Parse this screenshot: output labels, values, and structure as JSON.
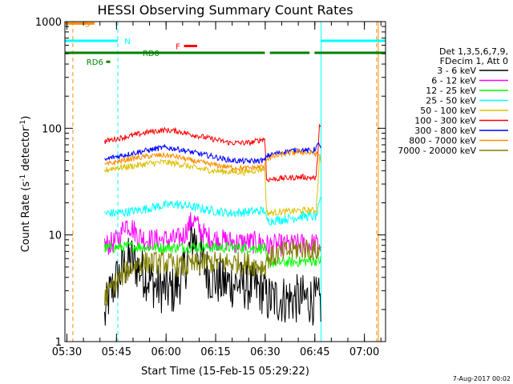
{
  "chart_data": {
    "type": "line",
    "title": "HESSI Observing Summary Count Rates",
    "xlabel": "Start Time (15-Feb-15 05:29:22)",
    "ylabel_main": "Count Rate (s",
    "ylabel_sup1": "-1",
    "ylabel_mid": " detector",
    "ylabel_sup2": "-1",
    "ylabel_end": ")",
    "x_unit": "minutes after 05:29:22",
    "xlim": [
      0,
      97
    ],
    "ylim": [
      1,
      1000
    ],
    "yscale": "log",
    "x_ticks": [
      {
        "label": "05:30",
        "value": 0.6
      },
      {
        "label": "05:45",
        "value": 15.6
      },
      {
        "label": "06:00",
        "value": 30.6
      },
      {
        "label": "06:15",
        "value": 45.6
      },
      {
        "label": "06:30",
        "value": 60.6
      },
      {
        "label": "06:45",
        "value": 75.6
      },
      {
        "label": "07:00",
        "value": 90.6
      }
    ],
    "y_ticks": [
      {
        "label": "1",
        "value": 1
      },
      {
        "label": "10",
        "value": 10
      },
      {
        "label": "100",
        "value": 100
      },
      {
        "label": "1000",
        "value": 1000
      }
    ],
    "legend_header": [
      "Det 1,3,5,6,7,9,",
      "FDecim 1, Att 0"
    ],
    "data_gaps": [
      [
        0,
        12
      ],
      [
        77.5,
        97
      ]
    ],
    "series": [
      {
        "name": "3 - 6 keV",
        "color": "#000000",
        "noise": 0.55,
        "points": [
          [
            12,
            1.6
          ],
          [
            13,
            2.5
          ],
          [
            15,
            3.5
          ],
          [
            18,
            5
          ],
          [
            20,
            6
          ],
          [
            22,
            5
          ],
          [
            25,
            4
          ],
          [
            28,
            3.2
          ],
          [
            33,
            3
          ],
          [
            36,
            4.5
          ],
          [
            38,
            8
          ],
          [
            39,
            10
          ],
          [
            41,
            6
          ],
          [
            44,
            4
          ],
          [
            48,
            3.5
          ],
          [
            52,
            3.5
          ],
          [
            56,
            3.3
          ],
          [
            60.5,
            3
          ],
          [
            61,
            2.5
          ],
          [
            66,
            2.5
          ],
          [
            70,
            2.5
          ],
          [
            74,
            2.5
          ],
          [
            77.5,
            2.3
          ]
        ]
      },
      {
        "name": "6 - 12 keV",
        "color": "#ff00ff",
        "noise": 0.25,
        "points": [
          [
            12,
            8
          ],
          [
            15,
            8.5
          ],
          [
            17,
            10
          ],
          [
            18,
            13
          ],
          [
            20,
            12
          ],
          [
            22,
            10
          ],
          [
            25,
            9
          ],
          [
            28,
            9
          ],
          [
            30,
            9
          ],
          [
            34,
            9
          ],
          [
            36,
            10
          ],
          [
            38,
            13
          ],
          [
            39,
            14
          ],
          [
            41,
            11
          ],
          [
            43,
            9.5
          ],
          [
            47,
            9
          ],
          [
            52,
            8.5
          ],
          [
            56,
            8.5
          ],
          [
            60.5,
            8.5
          ],
          [
            61,
            8
          ],
          [
            68,
            8
          ],
          [
            74,
            8.3
          ],
          [
            77.5,
            8
          ]
        ]
      },
      {
        "name": "12 - 25 keV",
        "color": "#00ff00",
        "noise": 0.12,
        "points": [
          [
            12,
            7.5
          ],
          [
            20,
            7.8
          ],
          [
            30,
            7.6
          ],
          [
            40,
            7.7
          ],
          [
            50,
            7.6
          ],
          [
            60.5,
            7.5
          ],
          [
            61,
            5.5
          ],
          [
            70,
            5.6
          ],
          [
            77.5,
            5.8
          ]
        ]
      },
      {
        "name": "25 - 50 keV",
        "color": "#00ffff",
        "noise": 0.1,
        "points": [
          [
            12,
            16
          ],
          [
            16,
            16
          ],
          [
            22,
            17
          ],
          [
            28,
            18.5
          ],
          [
            33,
            19.5
          ],
          [
            38,
            18.5
          ],
          [
            44,
            17
          ],
          [
            50,
            16
          ],
          [
            56,
            16.5
          ],
          [
            60.5,
            17
          ],
          [
            61,
            13.5
          ],
          [
            66,
            14
          ],
          [
            72,
            15
          ],
          [
            76,
            14.8
          ],
          [
            77.5,
            22
          ]
        ]
      },
      {
        "name": "50 - 100 keV",
        "color": "#ddc000",
        "noise": 0.07,
        "points": [
          [
            12,
            40
          ],
          [
            14,
            42
          ],
          [
            20,
            44
          ],
          [
            26,
            47
          ],
          [
            30,
            48
          ],
          [
            35,
            46
          ],
          [
            40,
            42
          ],
          [
            45,
            40
          ],
          [
            50,
            39
          ],
          [
            55,
            39
          ],
          [
            60.5,
            42
          ],
          [
            61,
            16
          ],
          [
            66,
            16.5
          ],
          [
            72,
            17
          ],
          [
            76,
            17
          ],
          [
            77,
            52
          ],
          [
            77.5,
            50
          ]
        ]
      },
      {
        "name": "100 - 300 keV",
        "color": "#ff0000",
        "noise": 0.06,
        "points": [
          [
            12,
            75
          ],
          [
            14,
            78
          ],
          [
            20,
            85
          ],
          [
            26,
            93
          ],
          [
            30,
            96
          ],
          [
            34,
            94
          ],
          [
            38,
            88
          ],
          [
            44,
            80
          ],
          [
            50,
            73
          ],
          [
            56,
            73
          ],
          [
            60.5,
            80
          ],
          [
            61,
            33
          ],
          [
            66,
            34
          ],
          [
            72,
            35
          ],
          [
            76,
            34
          ],
          [
            77,
            105
          ],
          [
            77.5,
            100
          ]
        ]
      },
      {
        "name": "300 - 800 keV",
        "color": "#0000ff",
        "noise": 0.06,
        "points": [
          [
            12,
            50
          ],
          [
            14,
            53
          ],
          [
            20,
            58
          ],
          [
            26,
            63
          ],
          [
            30,
            66
          ],
          [
            34,
            64
          ],
          [
            38,
            60
          ],
          [
            44,
            55
          ],
          [
            50,
            50
          ],
          [
            55,
            49
          ],
          [
            60.5,
            50
          ],
          [
            61,
            55
          ],
          [
            66,
            60
          ],
          [
            71,
            63
          ],
          [
            75,
            61
          ],
          [
            77,
            72
          ],
          [
            77.5,
            65
          ]
        ]
      },
      {
        "name": "800 - 7000 keV",
        "color": "#ff8c00",
        "noise": 0.06,
        "points": [
          [
            12,
            45
          ],
          [
            14,
            47
          ],
          [
            20,
            52
          ],
          [
            26,
            55
          ],
          [
            30,
            56
          ],
          [
            34,
            54
          ],
          [
            38,
            50
          ],
          [
            44,
            46
          ],
          [
            50,
            43
          ],
          [
            55,
            42
          ],
          [
            60.5,
            44
          ],
          [
            61,
            52
          ],
          [
            66,
            57
          ],
          [
            71,
            60
          ],
          [
            75,
            58
          ],
          [
            77,
            56
          ],
          [
            77.5,
            55
          ]
        ]
      },
      {
        "name": "7000 - 20000 keV",
        "color": "#808000",
        "noise": 0.25,
        "points": [
          [
            12,
            2.5
          ],
          [
            15,
            3.5
          ],
          [
            20,
            5
          ],
          [
            24,
            5.5
          ],
          [
            30,
            5.5
          ],
          [
            36,
            5
          ],
          [
            42,
            5.5
          ],
          [
            48,
            5.5
          ],
          [
            54,
            5.5
          ],
          [
            60.5,
            5
          ],
          [
            61,
            6
          ],
          [
            67,
            7
          ],
          [
            72,
            7.5
          ],
          [
            77.5,
            7
          ]
        ]
      }
    ],
    "states": [
      {
        "label": "S",
        "color": "#ff8c00",
        "segments": [
          [
            0,
            9
          ]
        ],
        "level": 960,
        "label_x": 6
      },
      {
        "label": "N",
        "color": "#00ffff",
        "segments": [
          [
            0,
            16
          ],
          [
            77.5,
            97
          ]
        ],
        "level": 660,
        "label_x": 18
      },
      {
        "label": "RD0",
        "color": "#008000",
        "segments": [
          [
            0,
            60.5
          ],
          [
            62,
            74
          ],
          [
            75.5,
            97
          ]
        ],
        "level": 510,
        "label_x": 23.5
      },
      {
        "label": "RD6",
        "color": "#008000",
        "segments": [
          [
            12.5,
            13.7
          ]
        ],
        "level": 420,
        "label_x": 6.5
      },
      {
        "label": "F",
        "color": "#ff0000",
        "segments": [
          [
            36,
            40
          ]
        ],
        "level": 590,
        "label_x": 33.5
      }
    ],
    "markers": [
      {
        "x": 2.4,
        "color": "#ff8c00",
        "style": "dashed"
      },
      {
        "x": 16,
        "color": "#00ffff",
        "style": "dashed"
      },
      {
        "x": 77.5,
        "color": "#00ffff",
        "style": "solid"
      },
      {
        "x": 94.3,
        "color": "#ff8c00",
        "style": "dashed"
      },
      {
        "x": 94.8,
        "color": "#ff8c00",
        "style": "solid"
      }
    ],
    "footer": "7-Aug-2017 00:02",
    "grid": false,
    "legend_position": "right"
  }
}
